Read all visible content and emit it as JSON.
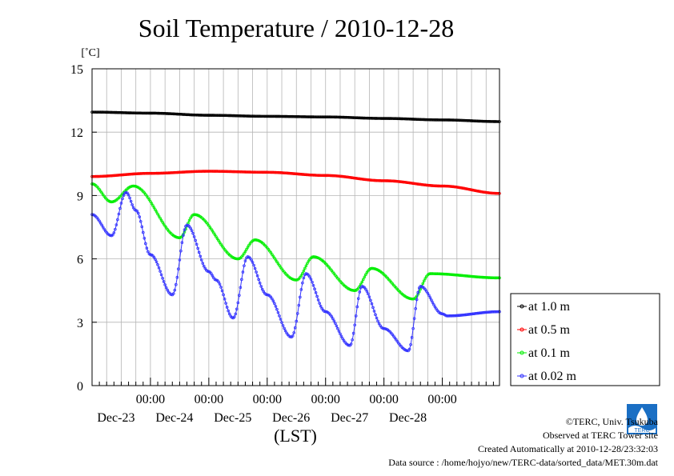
{
  "chart_data": {
    "type": "line",
    "title": "Soil Temperature / 2010-12-28",
    "ylabel": "[˚C]",
    "xlabel": "(LST)",
    "ylim": [
      0,
      15
    ],
    "yticks": [
      0,
      3,
      6,
      9,
      12,
      15
    ],
    "xlim": [
      "2010-12-22T00:00",
      "2010-12-28T23:30"
    ],
    "xtick_labels": [
      {
        "time": "2010-12-23T00:00",
        "time_label": "00:00",
        "date_label": "Dec-23"
      },
      {
        "time": "2010-12-24T00:00",
        "time_label": "00:00",
        "date_label": "Dec-24"
      },
      {
        "time": "2010-12-25T00:00",
        "time_label": "00:00",
        "date_label": "Dec-25"
      },
      {
        "time": "2010-12-26T00:00",
        "time_label": "00:00",
        "date_label": "Dec-26"
      },
      {
        "time": "2010-12-27T00:00",
        "time_label": "00:00",
        "date_label": "Dec-27"
      },
      {
        "time": "2010-12-28T00:00",
        "time_label": "00:00",
        "date_label": "Dec-28"
      }
    ],
    "grid": true,
    "legend_position": "bottom-right outside",
    "series": [
      {
        "name": "at 1.0 m",
        "color": "#000000",
        "points": [
          [
            "2010-12-22T00:00",
            12.95
          ],
          [
            "2010-12-23T00:00",
            12.9
          ],
          [
            "2010-12-24T00:00",
            12.8
          ],
          [
            "2010-12-25T00:00",
            12.75
          ],
          [
            "2010-12-26T00:00",
            12.72
          ],
          [
            "2010-12-27T00:00",
            12.65
          ],
          [
            "2010-12-28T00:00",
            12.58
          ],
          [
            "2010-12-28T23:30",
            12.5
          ]
        ]
      },
      {
        "name": "at 0.5 m",
        "color": "#ff0000",
        "points": [
          [
            "2010-12-22T00:00",
            9.9
          ],
          [
            "2010-12-23T00:00",
            10.05
          ],
          [
            "2010-12-24T00:00",
            10.15
          ],
          [
            "2010-12-25T00:00",
            10.1
          ],
          [
            "2010-12-26T00:00",
            9.95
          ],
          [
            "2010-12-27T00:00",
            9.7
          ],
          [
            "2010-12-28T00:00",
            9.45
          ],
          [
            "2010-12-28T23:30",
            9.1
          ]
        ]
      },
      {
        "name": "at 0.1 m",
        "color": "#00ee00",
        "points": [
          [
            "2010-12-22T00:00",
            9.55
          ],
          [
            "2010-12-22T08:00",
            8.7
          ],
          [
            "2010-12-22T17:00",
            9.45
          ],
          [
            "2010-12-23T12:00",
            7.0
          ],
          [
            "2010-12-23T18:00",
            8.1
          ],
          [
            "2010-12-24T12:00",
            6.0
          ],
          [
            "2010-12-24T19:00",
            6.9
          ],
          [
            "2010-12-25T12:00",
            5.0
          ],
          [
            "2010-12-25T19:00",
            6.1
          ],
          [
            "2010-12-26T12:00",
            4.5
          ],
          [
            "2010-12-26T19:00",
            5.55
          ],
          [
            "2010-12-27T12:00",
            4.1
          ],
          [
            "2010-12-27T19:00",
            5.3
          ],
          [
            "2010-12-28T23:30",
            5.1
          ]
        ]
      },
      {
        "name": "at 0.02 m",
        "color": "#3333ff",
        "points": [
          [
            "2010-12-22T00:00",
            8.1
          ],
          [
            "2010-12-22T08:00",
            7.1
          ],
          [
            "2010-12-22T14:00",
            9.15
          ],
          [
            "2010-12-22T18:00",
            8.3
          ],
          [
            "2010-12-23T00:00",
            6.2
          ],
          [
            "2010-12-23T09:00",
            4.3
          ],
          [
            "2010-12-23T15:00",
            7.6
          ],
          [
            "2010-12-24T00:00",
            5.4
          ],
          [
            "2010-12-24T03:00",
            5.0
          ],
          [
            "2010-12-24T10:00",
            3.2
          ],
          [
            "2010-12-24T16:00",
            6.1
          ],
          [
            "2010-12-25T00:00",
            4.3
          ],
          [
            "2010-12-25T10:00",
            2.3
          ],
          [
            "2010-12-25T16:00",
            5.3
          ],
          [
            "2010-12-26T00:00",
            3.5
          ],
          [
            "2010-12-26T10:00",
            1.9
          ],
          [
            "2010-12-26T15:00",
            4.7
          ],
          [
            "2010-12-27T00:00",
            2.7
          ],
          [
            "2010-12-27T10:00",
            1.65
          ],
          [
            "2010-12-27T15:00",
            4.7
          ],
          [
            "2010-12-28T00:00",
            3.4
          ],
          [
            "2010-12-28T02:00",
            3.3
          ],
          [
            "2010-12-28T23:30",
            3.5
          ]
        ]
      }
    ]
  },
  "footer": {
    "copyright": "©TERC, Univ. Tsukuba",
    "site": "Observed at TERC Tower site",
    "created": "Created Automatically at 2010-12-28/23:32:03",
    "source": "Data source : /home/hojyo/new/TERC-data/sorted_data/MET.30m.dat"
  },
  "logo": {
    "text": "TERC",
    "color": "#1a6fc4"
  }
}
